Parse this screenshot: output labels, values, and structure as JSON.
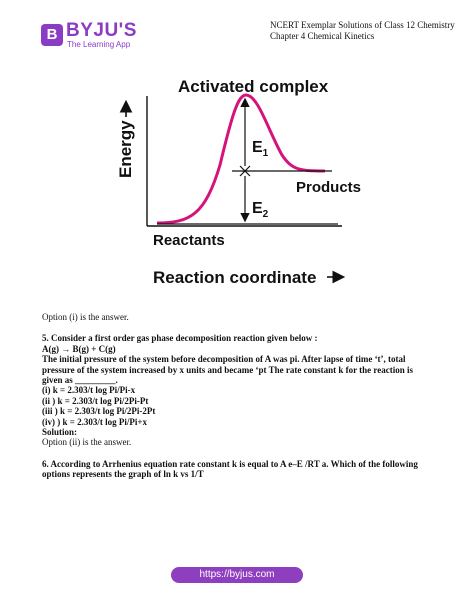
{
  "header": {
    "logo": {
      "brand": "BYJU'S",
      "tagline": "The Learning App"
    },
    "title": "NCERT Exemplar Solutions of Class 12 Chemistry",
    "subtitle": "Chapter 4 Chemical Kinetics"
  },
  "diagram": {
    "peak_label": "Activated complex",
    "y_axis": "Energy",
    "x_axis": "Reaction coordinate",
    "e1": {
      "letter": "E",
      "sub": "1"
    },
    "e2": {
      "letter": "E",
      "sub": "2"
    },
    "products": "Products",
    "reactants": "Reactants"
  },
  "body": [
    {
      "text": "Option (i) is the answer.",
      "bold": false
    },
    {
      "text": "5. Consider a first order gas phase decomposition reaction given below :",
      "bold": true
    },
    {
      "text": "A(g) → B(g) + C(g)",
      "bold": true
    },
    {
      "text": "The initial pressure of the system before decomposition of A was pi. After lapse of time ‘t’, total pressure of the system increased by x units and became ‘pt The rate constant k for the reaction is given as _________.",
      "bold": true
    },
    {
      "text": "(i) k = 2.303/t log Pi/Pi-x",
      "bold": true
    },
    {
      "text": "(ii ) k = 2.303/t log Pi/2Pi-Pt",
      "bold": true
    },
    {
      "text": "(iii ) k = 2.303/t log Pi/2Pi-2Pt",
      "bold": true
    },
    {
      "text": "(iv) ) k = 2.303/t log Pi/Pi+x",
      "bold": true
    },
    {
      "text": "Solution:",
      "bold": true
    },
    {
      "text": "Option (ii) is the answer.",
      "bold": false
    },
    {
      "text": "6. According to Arrhenius equation rate constant k is equal to A e–E /RT a. Which of the following options represents the graph of ln k vs 1/T",
      "bold": true
    }
  ],
  "footer": {
    "url": "https://byjus.com"
  }
}
